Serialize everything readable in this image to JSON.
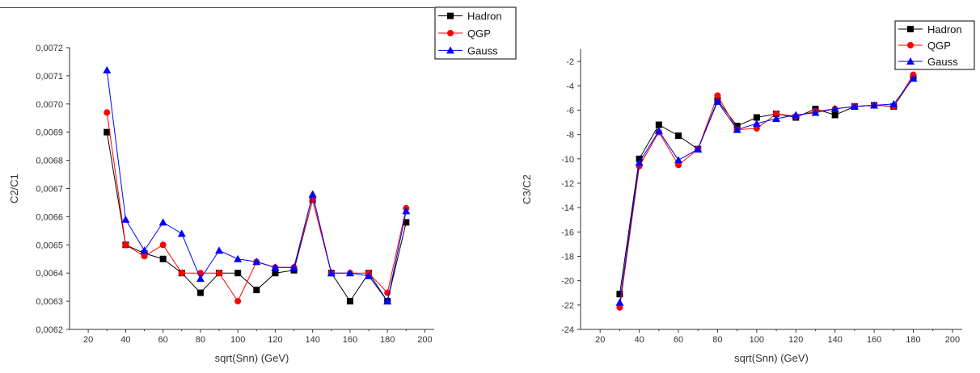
{
  "chart_data": [
    {
      "type": "line",
      "title": "",
      "xlabel": "sqrt(Snn) (GeV)",
      "ylabel": "C2/C1",
      "xlim": [
        10,
        205
      ],
      "ylim": [
        0.0062,
        0.0072
      ],
      "xticks": [
        "20",
        "40",
        "60",
        "80",
        "100",
        "120",
        "140",
        "160",
        "180",
        "200"
      ],
      "yticks": [
        "0,0062",
        "0,0063",
        "0,0064",
        "0,0065",
        "0,0066",
        "0,0067",
        "0,0068",
        "0,0069",
        "0,0070",
        "0,0071",
        "0,0072"
      ],
      "x": [
        30,
        40,
        50,
        60,
        70,
        80,
        90,
        100,
        110,
        120,
        130,
        140,
        150,
        160,
        170,
        180,
        190
      ],
      "grid": false,
      "legend_position": "top-right",
      "series": [
        {
          "name": "Hadron",
          "color": "#000000",
          "marker": "square",
          "values": [
            0.0069,
            0.0065,
            0.00647,
            0.00645,
            0.0064,
            0.00633,
            0.0064,
            0.0064,
            0.00634,
            0.0064,
            0.00641,
            0.00666,
            0.0064,
            0.0063,
            0.0064,
            0.0063,
            0.00658
          ]
        },
        {
          "name": "QGP",
          "color": "#ff0000",
          "marker": "circle",
          "values": [
            0.00697,
            0.0065,
            0.00646,
            0.0065,
            0.0064,
            0.0064,
            0.0064,
            0.0063,
            0.00644,
            0.00642,
            0.00642,
            0.00666,
            0.0064,
            0.0064,
            0.0064,
            0.00633,
            0.00663
          ]
        },
        {
          "name": "Gauss",
          "color": "#0000ff",
          "marker": "triangle",
          "values": [
            0.00712,
            0.00659,
            0.00648,
            0.00658,
            0.00654,
            0.00638,
            0.00648,
            0.00645,
            0.00644,
            0.00642,
            0.00642,
            0.00668,
            0.0064,
            0.0064,
            0.00639,
            0.0063,
            0.00662
          ]
        }
      ]
    },
    {
      "type": "line",
      "title": "",
      "xlabel": "sqrt(Snn) (GeV)",
      "ylabel": "C3/C2",
      "xlim": [
        10,
        205
      ],
      "ylim": [
        -24,
        -1
      ],
      "xticks": [
        "20",
        "40",
        "60",
        "80",
        "100",
        "120",
        "140",
        "160",
        "180",
        "200"
      ],
      "yticks": [
        "-24",
        "-22",
        "-20",
        "-18",
        "-16",
        "-14",
        "-12",
        "-10",
        "-8",
        "-6",
        "-4",
        "-2"
      ],
      "x": [
        30,
        40,
        50,
        60,
        70,
        80,
        90,
        100,
        110,
        120,
        130,
        140,
        150,
        160,
        170,
        180
      ],
      "grid": false,
      "legend_position": "top-right",
      "series": [
        {
          "name": "Hadron",
          "color": "#000000",
          "marker": "square",
          "values": [
            -21.1,
            -10.0,
            -7.2,
            -8.1,
            -9.2,
            -5.2,
            -7.3,
            -6.6,
            -6.3,
            -6.6,
            -5.9,
            -6.4,
            -5.7,
            -5.6,
            -5.7,
            -3.3
          ]
        },
        {
          "name": "QGP",
          "color": "#ff0000",
          "marker": "circle",
          "values": [
            -22.2,
            -10.6,
            -7.8,
            -10.5,
            -9.2,
            -4.8,
            -7.6,
            -7.5,
            -6.3,
            -6.5,
            -6.1,
            -5.9,
            -5.7,
            -5.6,
            -5.7,
            -3.1
          ]
        },
        {
          "name": "Gauss",
          "color": "#0000ff",
          "marker": "triangle",
          "values": [
            -21.8,
            -10.3,
            -7.7,
            -10.1,
            -9.2,
            -5.3,
            -7.6,
            -7.1,
            -6.7,
            -6.4,
            -6.2,
            -5.9,
            -5.7,
            -5.6,
            -5.5,
            -3.4
          ]
        }
      ]
    }
  ]
}
